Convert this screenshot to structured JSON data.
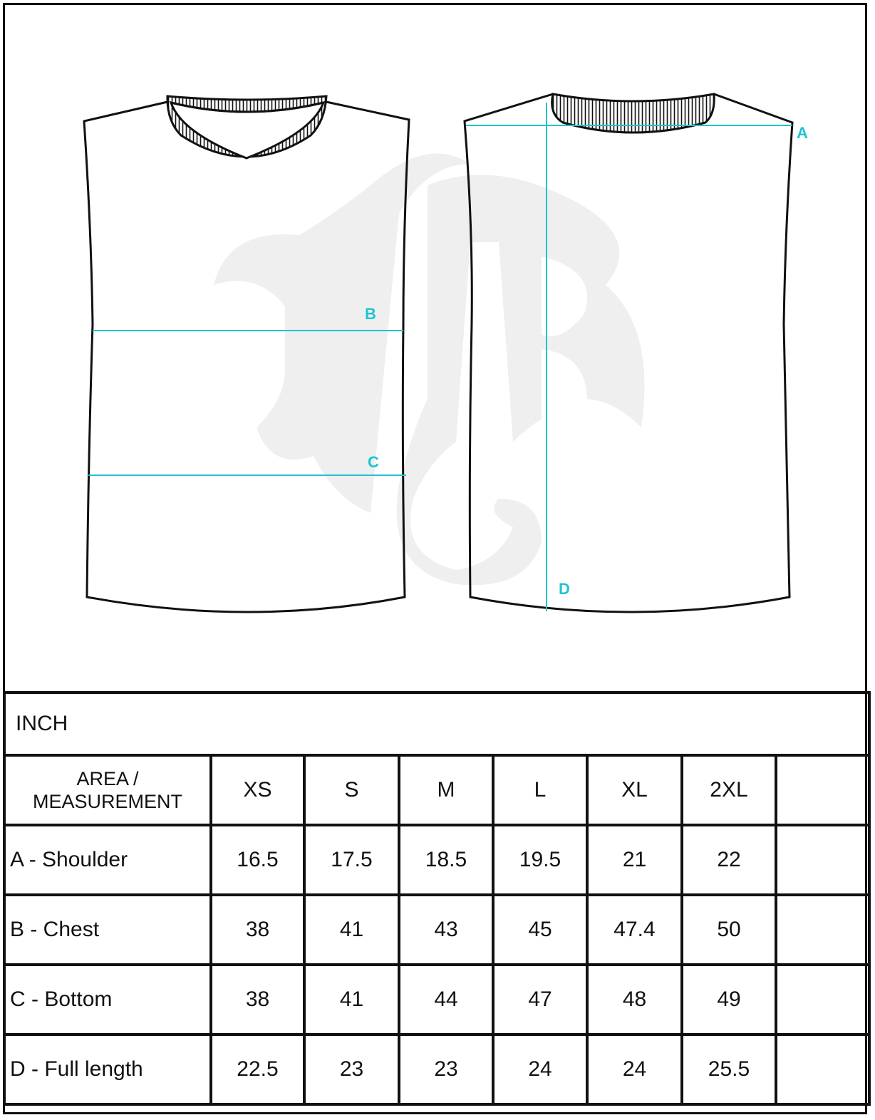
{
  "diagram": {
    "labels": {
      "A": "A",
      "B": "B",
      "C": "C",
      "D": "D"
    },
    "accent_color": "#1ec4d0",
    "watermark": "B"
  },
  "table": {
    "unit": "INCH",
    "header": [
      "AREA / MEASUREMENT",
      "XS",
      "S",
      "M",
      "L",
      "XL",
      "2XL",
      ""
    ],
    "rows": [
      {
        "label": "A - Shoulder",
        "values": [
          "16.5",
          "17.5",
          "18.5",
          "19.5",
          "21",
          "22",
          ""
        ]
      },
      {
        "label": "B - Chest",
        "values": [
          "38",
          "41",
          "43",
          "45",
          "47.4",
          "50",
          ""
        ]
      },
      {
        "label": "C - Bottom",
        "values": [
          "38",
          "41",
          "44",
          "47",
          "48",
          "49",
          ""
        ]
      },
      {
        "label": "D - Full length",
        "values": [
          "22.5",
          "23",
          "23",
          "24",
          "24",
          "25.5",
          ""
        ]
      }
    ]
  }
}
